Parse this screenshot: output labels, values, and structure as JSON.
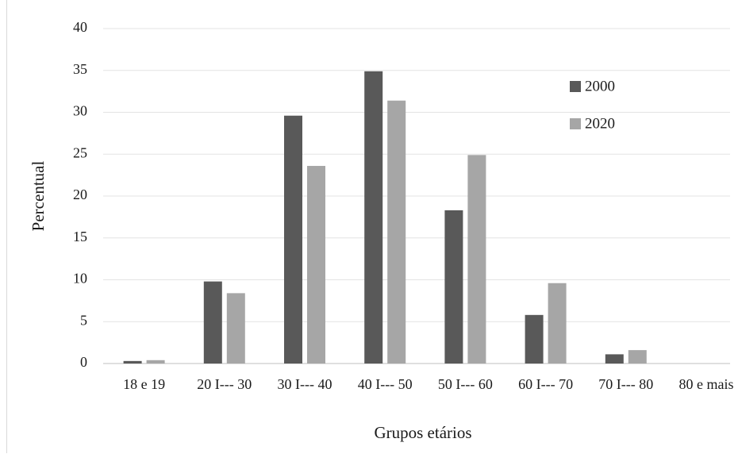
{
  "chart_data": {
    "type": "bar",
    "title": "",
    "xlabel": "Grupos etários",
    "ylabel": "Percentual",
    "ylim": [
      0,
      40
    ],
    "yticks": [
      "0",
      "5",
      "10",
      "15",
      "20",
      "25",
      "30",
      "35",
      "40"
    ],
    "categories": [
      "18 e 19",
      "20 I--- 30",
      "30 I--- 40",
      "40 I--- 50",
      "50 I--- 60",
      "60 I--- 70",
      "70 I--- 80",
      "80 e mais"
    ],
    "series": [
      {
        "name": "2000",
        "color": "#595959",
        "values": [
          0.3,
          9.8,
          29.6,
          34.9,
          18.3,
          5.8,
          1.1,
          0
        ]
      },
      {
        "name": "2020",
        "color": "#a6a6a6",
        "values": [
          0.4,
          8.4,
          23.6,
          31.4,
          24.9,
          9.6,
          1.6,
          0
        ]
      }
    ],
    "grid": true,
    "legend_position": "top-right"
  }
}
